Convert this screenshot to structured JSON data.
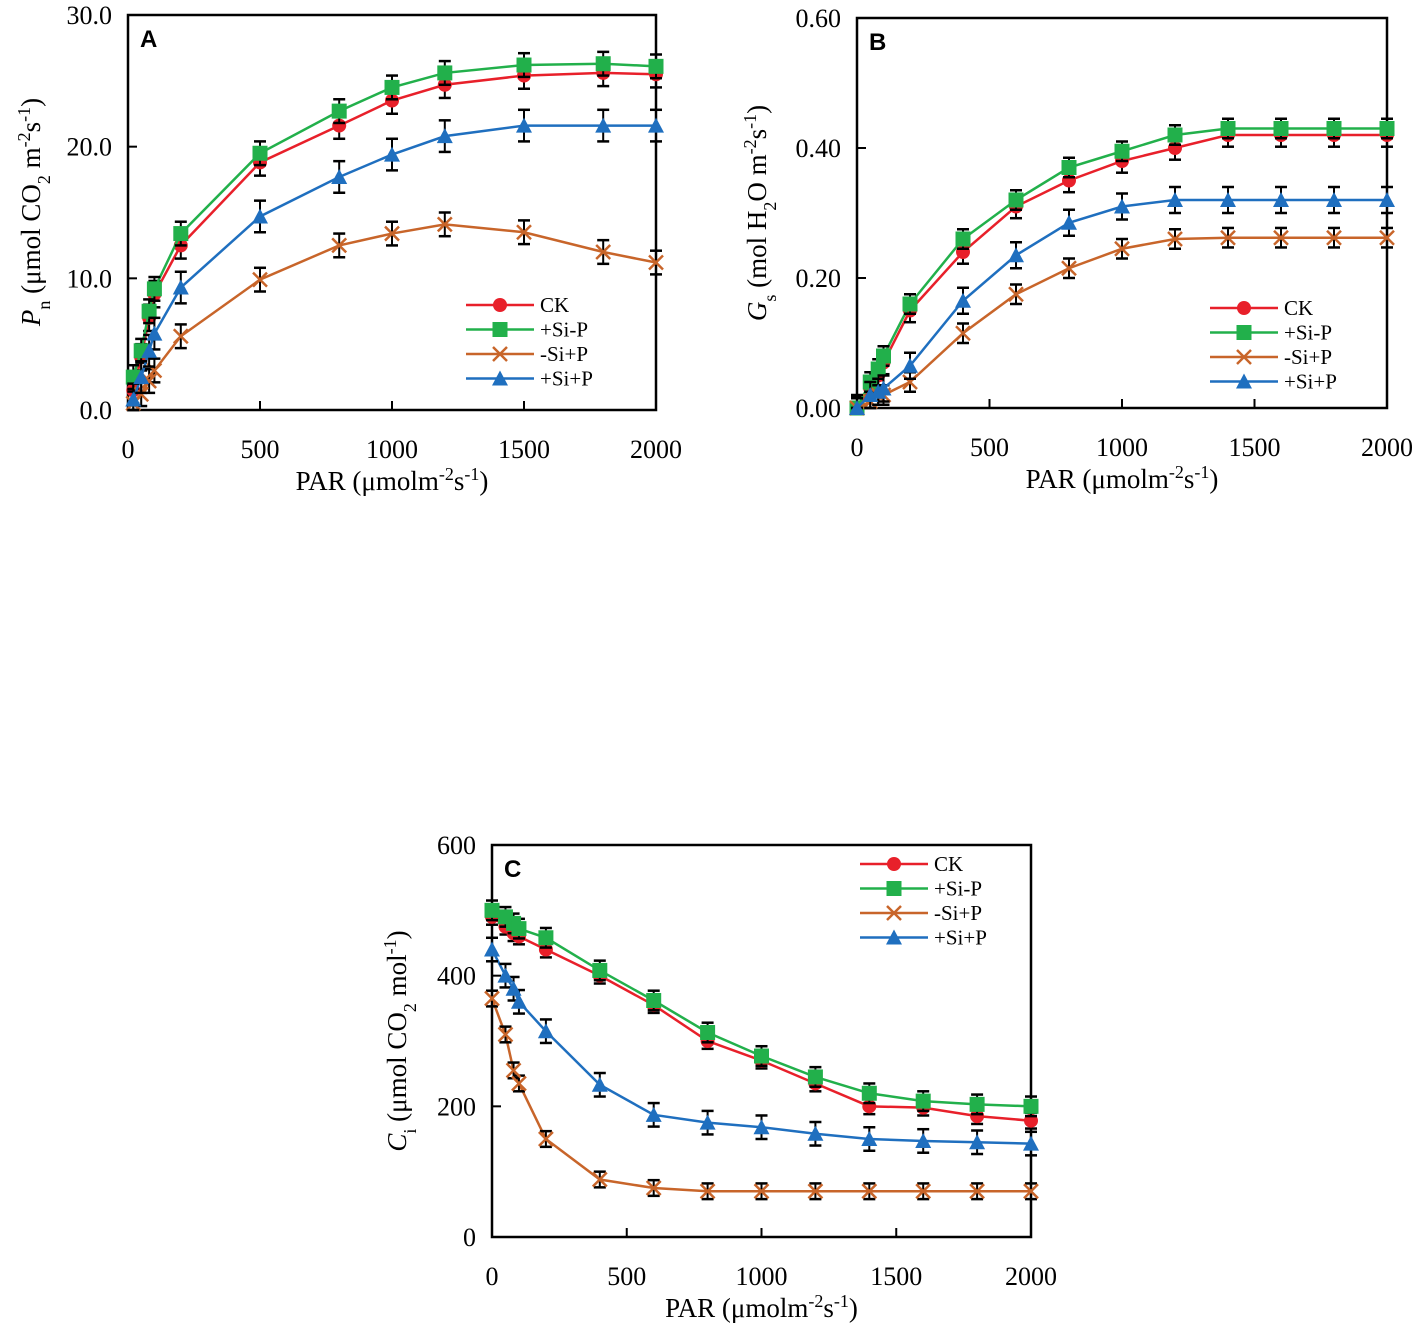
{
  "chart_data": [
    {
      "type": "line",
      "panel": "A",
      "xlabel": [
        {
          "t": "PAR (μmolm"
        },
        {
          "t": "-2",
          "sup": true
        },
        {
          "t": "s"
        },
        {
          "t": "-1",
          "sup": true
        },
        {
          "t": ")"
        }
      ],
      "ylabel": [
        {
          "t": "P",
          "i": true
        },
        {
          "t": "n",
          "sub": true
        },
        {
          "t": " (μmol CO"
        },
        {
          "t": "2",
          "sub": true
        },
        {
          "t": " m"
        },
        {
          "t": "-2",
          "sup": true
        },
        {
          "t": "s"
        },
        {
          "t": "-1",
          "sup": true
        },
        {
          "t": ")"
        }
      ],
      "xlim": [
        0,
        2000
      ],
      "ylim": [
        0,
        30
      ],
      "xticks": [
        0,
        500,
        1000,
        1500,
        2000
      ],
      "xtick_labels": [
        "0",
        "500",
        "1000",
        "1500",
        "2000"
      ],
      "yticks": [
        0,
        10,
        20,
        30
      ],
      "ytick_labels": [
        "0.0",
        "10.0",
        "20.0",
        "30.0"
      ],
      "legend_position": "bottom-right",
      "x": [
        20,
        50,
        80,
        100,
        200,
        500,
        800,
        1000,
        1200,
        1500,
        1800,
        2000
      ],
      "series": [
        {
          "name": "CK",
          "color": "#e8202a",
          "marker": "circle",
          "err": 1.0,
          "values": [
            1.5,
            4.0,
            7.0,
            8.8,
            12.5,
            18.8,
            21.6,
            23.5,
            24.7,
            25.4,
            25.6,
            25.5
          ]
        },
        {
          "name": "+Si-P",
          "color": "#22b04b",
          "marker": "square",
          "err": 0.9,
          "values": [
            2.5,
            4.5,
            7.5,
            9.2,
            13.4,
            19.5,
            22.7,
            24.5,
            25.6,
            26.2,
            26.3,
            26.1
          ]
        },
        {
          "name": "-Si+P",
          "color": "#c8652a",
          "marker": "x",
          "err": 0.9,
          "values": [
            0.5,
            1.2,
            2.2,
            3.0,
            5.6,
            9.9,
            12.5,
            13.4,
            14.1,
            13.5,
            12.0,
            11.2
          ]
        },
        {
          "name": "+Si+P",
          "color": "#1f6fbf",
          "marker": "triangle",
          "err": 1.2,
          "values": [
            0.8,
            2.5,
            4.5,
            5.8,
            9.3,
            14.7,
            17.7,
            19.4,
            20.8,
            21.6,
            21.6,
            21.6
          ]
        }
      ]
    },
    {
      "type": "line",
      "panel": "B",
      "xlabel": [
        {
          "t": "PAR (μmolm"
        },
        {
          "t": "-2",
          "sup": true
        },
        {
          "t": "s"
        },
        {
          "t": "-1",
          "sup": true
        },
        {
          "t": ")"
        }
      ],
      "ylabel": [
        {
          "t": "G",
          "i": true
        },
        {
          "t": "s",
          "sub": true
        },
        {
          "t": " (mol H"
        },
        {
          "t": "2",
          "sub": true
        },
        {
          "t": "O m"
        },
        {
          "t": "-2",
          "sup": true
        },
        {
          "t": "s"
        },
        {
          "t": "-1",
          "sup": true
        },
        {
          "t": ")"
        }
      ],
      "xlim": [
        0,
        2000
      ],
      "ylim": [
        0,
        0.6
      ],
      "xticks": [
        0,
        500,
        1000,
        1500,
        2000
      ],
      "xtick_labels": [
        "0",
        "500",
        "1000",
        "1500",
        "2000"
      ],
      "yticks": [
        0,
        0.2,
        0.4,
        0.6
      ],
      "ytick_labels": [
        "0.00",
        "0.20",
        "0.40",
        "0.60"
      ],
      "legend_position": "bottom-right",
      "x": [
        0,
        50,
        80,
        100,
        200,
        400,
        600,
        800,
        1000,
        1200,
        1400,
        1600,
        1800,
        2000
      ],
      "series": [
        {
          "name": "CK",
          "color": "#e8202a",
          "marker": "circle",
          "err": 0.018,
          "values": [
            0,
            0.03,
            0.05,
            0.07,
            0.15,
            0.24,
            0.31,
            0.35,
            0.38,
            0.4,
            0.42,
            0.42,
            0.42,
            0.42
          ]
        },
        {
          "name": "+Si-P",
          "color": "#22b04b",
          "marker": "square",
          "err": 0.015,
          "values": [
            0,
            0.04,
            0.06,
            0.08,
            0.16,
            0.26,
            0.32,
            0.37,
            0.395,
            0.42,
            0.43,
            0.43,
            0.43,
            0.43
          ]
        },
        {
          "name": "-Si+P",
          "color": "#c8652a",
          "marker": "x",
          "err": 0.015,
          "values": [
            0,
            0.01,
            0.02,
            0.02,
            0.04,
            0.115,
            0.175,
            0.215,
            0.245,
            0.26,
            0.262,
            0.262,
            0.262,
            0.262
          ]
        },
        {
          "name": "+Si+P",
          "color": "#1f6fbf",
          "marker": "triangle",
          "err": 0.02,
          "values": [
            0,
            0.02,
            0.025,
            0.03,
            0.065,
            0.165,
            0.235,
            0.285,
            0.31,
            0.32,
            0.32,
            0.32,
            0.32,
            0.32
          ]
        }
      ]
    },
    {
      "type": "line",
      "panel": "C",
      "xlabel": [
        {
          "t": "PAR (μmolm"
        },
        {
          "t": "-2",
          "sup": true
        },
        {
          "t": "s"
        },
        {
          "t": "-1",
          "sup": true
        },
        {
          "t": ")"
        }
      ],
      "ylabel": [
        {
          "t": "C",
          "i": true
        },
        {
          "t": "i",
          "sub": true
        },
        {
          "t": " (μmol CO"
        },
        {
          "t": "2",
          "sub": true
        },
        {
          "t": " mol"
        },
        {
          "t": "-1",
          "sup": true
        },
        {
          "t": ")"
        }
      ],
      "xlim": [
        0,
        2000
      ],
      "ylim": [
        0,
        600
      ],
      "xticks": [
        0,
        500,
        1000,
        1500,
        2000
      ],
      "xtick_labels": [
        "0",
        "500",
        "1000",
        "1500",
        "2000"
      ],
      "yticks": [
        0,
        200,
        400,
        600
      ],
      "ytick_labels": [
        "0",
        "200",
        "400",
        "600"
      ],
      "legend_position": "top-right",
      "x": [
        0,
        50,
        80,
        100,
        200,
        400,
        600,
        800,
        1000,
        1200,
        1400,
        1600,
        1800,
        2000
      ],
      "series": [
        {
          "name": "CK",
          "color": "#e8202a",
          "marker": "circle",
          "err": 12,
          "values": [
            490,
            475,
            465,
            460,
            440,
            400,
            355,
            300,
            270,
            235,
            200,
            198,
            185,
            178
          ]
        },
        {
          "name": "+Si-P",
          "color": "#22b04b",
          "marker": "square",
          "err": 15,
          "values": [
            500,
            490,
            480,
            472,
            458,
            408,
            362,
            313,
            277,
            245,
            220,
            208,
            203,
            200
          ]
        },
        {
          "name": "-Si+P",
          "color": "#c8652a",
          "marker": "x",
          "err": 12,
          "values": [
            365,
            310,
            255,
            235,
            150,
            88,
            75,
            70,
            70,
            70,
            70,
            70,
            70,
            70
          ]
        },
        {
          "name": "+Si+P",
          "color": "#1f6fbf",
          "marker": "triangle",
          "err": 18,
          "values": [
            440,
            400,
            380,
            360,
            315,
            233,
            187,
            175,
            168,
            158,
            150,
            147,
            145,
            143
          ]
        }
      ]
    }
  ]
}
